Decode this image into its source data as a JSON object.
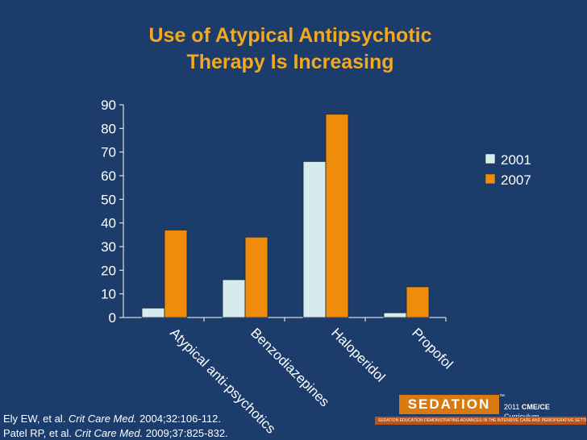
{
  "slide": {
    "title_line1": "Use of Atypical Antipsychotic",
    "title_line2": "Therapy Is Increasing"
  },
  "chart_data": {
    "type": "bar",
    "categories": [
      "Atypical anti-psychotics",
      "Benzodiazepines",
      "Haloperidol",
      "Propofol"
    ],
    "series": [
      {
        "name": "2001",
        "values": [
          4,
          16,
          66,
          2
        ],
        "color": "#d6ecec"
      },
      {
        "name": "2007",
        "values": [
          37,
          34,
          86,
          13
        ],
        "color": "#f08c0c"
      }
    ],
    "y_ticks": [
      "0",
      "10",
      "20",
      "30",
      "40",
      "50",
      "60",
      "70",
      "80",
      "90"
    ],
    "ylim": [
      0,
      90
    ],
    "legend_position": "right",
    "grid": false
  },
  "references": {
    "ref1_authors": "Ely EW, et al. ",
    "ref1_journal": "Crit Care Med.",
    "ref1_rest": " 2004;32:106-112.",
    "ref2_authors": "Patel RP, et al. ",
    "ref2_journal": "Crit Care Med.",
    "ref2_rest": " 2009;37:825-832."
  },
  "logo": {
    "name": "SEDATION",
    "tm": "™",
    "year": "2011 ",
    "cme": "CME/CE",
    "curriculum": " Curriculum",
    "tagline": "SEDATION EDUCATION DEMONSTRATING ADVANCES IN THE INTENSIVE CARE AND PERIOPERATIVE SETTINGS"
  }
}
